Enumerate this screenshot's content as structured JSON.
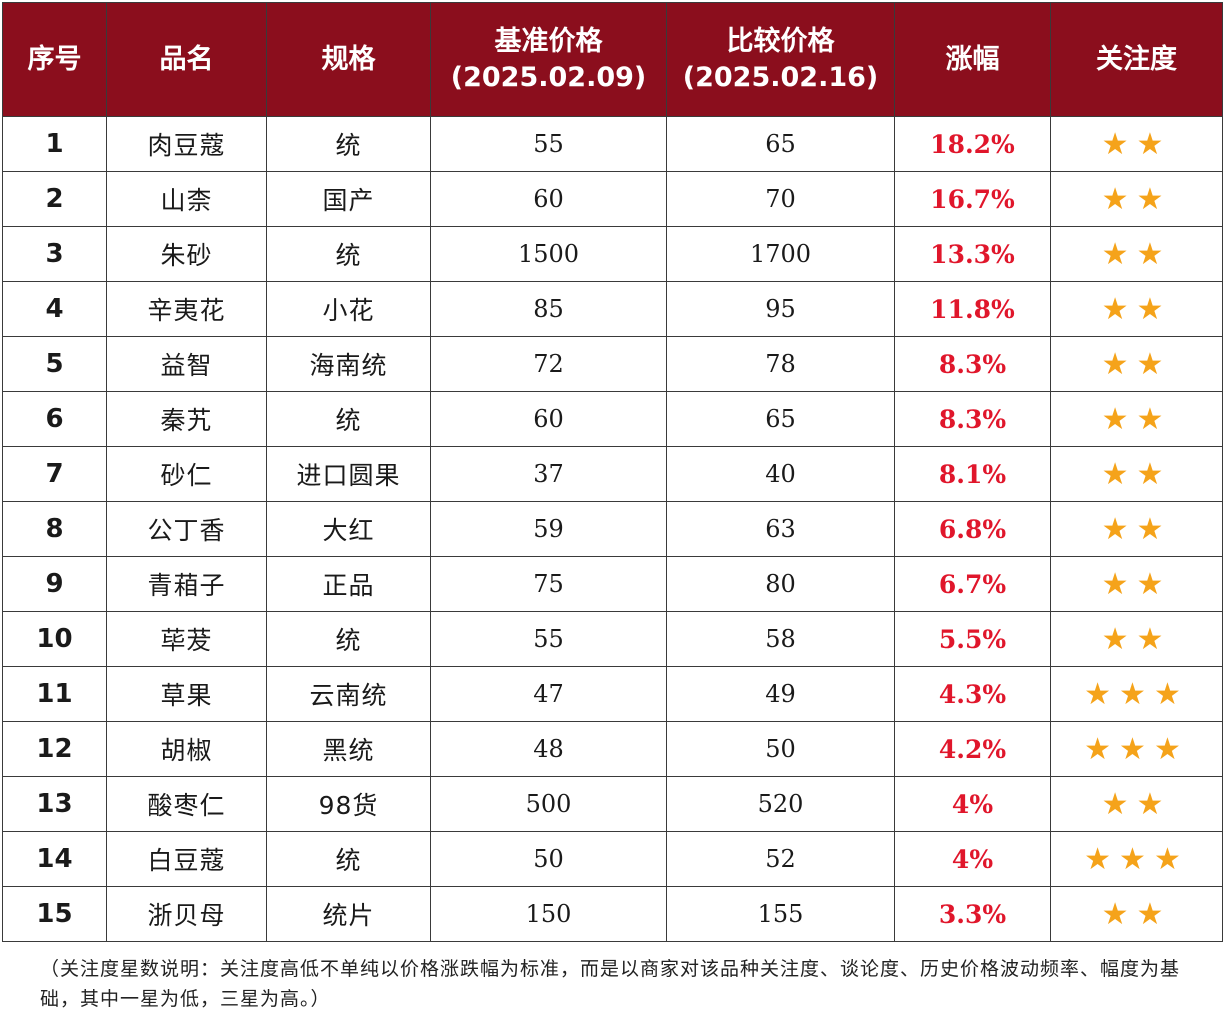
{
  "header": {
    "no": "序号",
    "name": "品名",
    "spec": "规格",
    "base_price": "基准价格",
    "base_date": "(2025.02.09)",
    "compare_price": "比较价格",
    "compare_date": "(2025.02.16)",
    "rise": "涨幅",
    "attention": "关注度"
  },
  "accent_color": "#8b0e1d",
  "rise_color": "#e0162b",
  "star_color": "#f5a31a",
  "rows": [
    {
      "no": "1",
      "name": "肉豆蔻",
      "spec": "统",
      "base": "55",
      "compare": "65",
      "rise": "18.2%",
      "stars": 2
    },
    {
      "no": "2",
      "name": "山柰",
      "spec": "国产",
      "base": "60",
      "compare": "70",
      "rise": "16.7%",
      "stars": 2
    },
    {
      "no": "3",
      "name": "朱砂",
      "spec": "统",
      "base": "1500",
      "compare": "1700",
      "rise": "13.3%",
      "stars": 2
    },
    {
      "no": "4",
      "name": "辛夷花",
      "spec": "小花",
      "base": "85",
      "compare": "95",
      "rise": "11.8%",
      "stars": 2
    },
    {
      "no": "5",
      "name": "益智",
      "spec": "海南统",
      "base": "72",
      "compare": "78",
      "rise": "8.3%",
      "stars": 2
    },
    {
      "no": "6",
      "name": "秦艽",
      "spec": "统",
      "base": "60",
      "compare": "65",
      "rise": "8.3%",
      "stars": 2
    },
    {
      "no": "7",
      "name": "砂仁",
      "spec": "进口圆果",
      "base": "37",
      "compare": "40",
      "rise": "8.1%",
      "stars": 2
    },
    {
      "no": "8",
      "name": "公丁香",
      "spec": "大红",
      "base": "59",
      "compare": "63",
      "rise": "6.8%",
      "stars": 2
    },
    {
      "no": "9",
      "name": "青葙子",
      "spec": "正品",
      "base": "75",
      "compare": "80",
      "rise": "6.7%",
      "stars": 2
    },
    {
      "no": "10",
      "name": "荜茇",
      "spec": "统",
      "base": "55",
      "compare": "58",
      "rise": "5.5%",
      "stars": 2
    },
    {
      "no": "11",
      "name": "草果",
      "spec": "云南统",
      "base": "47",
      "compare": "49",
      "rise": "4.3%",
      "stars": 3
    },
    {
      "no": "12",
      "name": "胡椒",
      "spec": "黑统",
      "base": "48",
      "compare": "50",
      "rise": "4.2%",
      "stars": 3
    },
    {
      "no": "13",
      "name": "酸枣仁",
      "spec": "98货",
      "base": "500",
      "compare": "520",
      "rise": "4%",
      "stars": 2
    },
    {
      "no": "14",
      "name": "白豆蔻",
      "spec": "统",
      "base": "50",
      "compare": "52",
      "rise": "4%",
      "stars": 3
    },
    {
      "no": "15",
      "name": "浙贝母",
      "spec": "统片",
      "base": "150",
      "compare": "155",
      "rise": "3.3%",
      "stars": 2
    }
  ],
  "note": "（关注度星数说明：关注度高低不单纯以价格涨跌幅为标准，而是以商家对该品种关注度、谈论度、历史价格波动频率、幅度为基础，其中一星为低，三星为高。）"
}
